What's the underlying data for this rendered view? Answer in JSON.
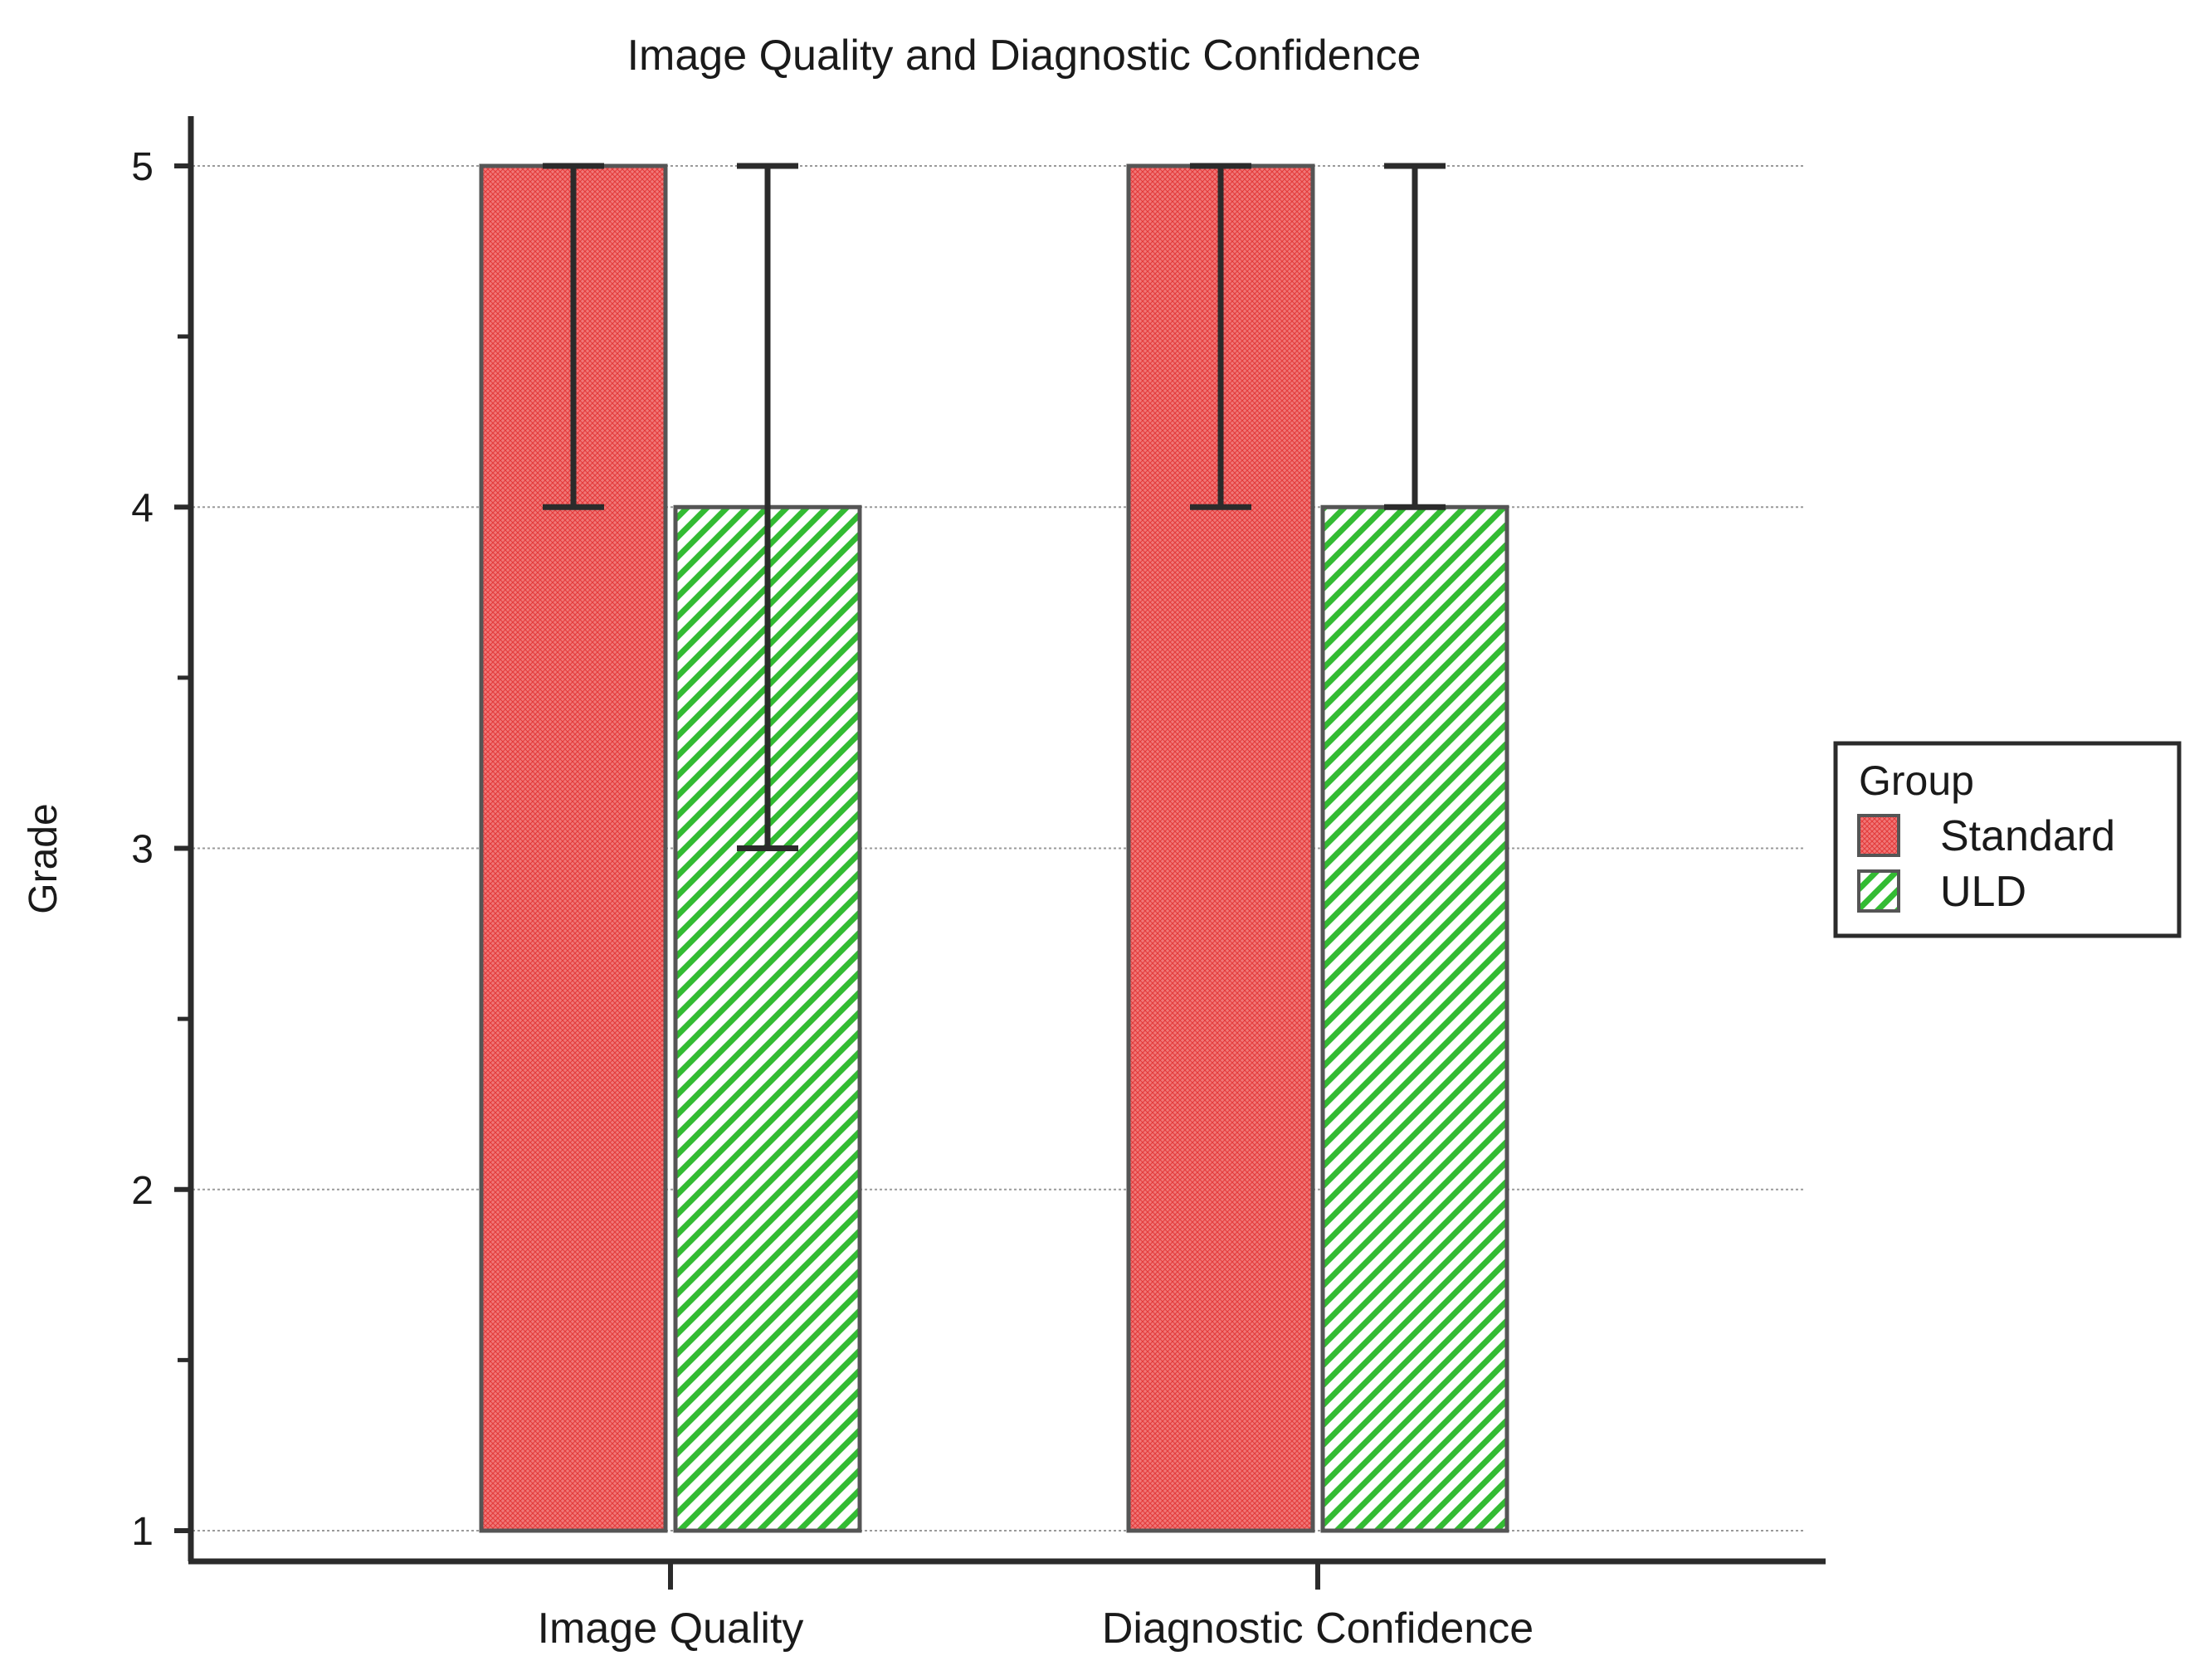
{
  "chart_data": {
    "type": "bar",
    "title": "Image Quality and Diagnostic Confidence",
    "xlabel": "",
    "ylabel": "Grade",
    "ylim": [
      1,
      5
    ],
    "yticks": [
      1,
      2,
      3,
      4,
      5
    ],
    "ytick_labels": [
      "1",
      "2",
      "3",
      "4",
      "5"
    ],
    "minor_yticks": [
      1.5,
      2.5,
      3.5,
      4.5
    ],
    "grid": true,
    "categories": [
      "Image Quality",
      "Diagnostic Confidence"
    ],
    "series": [
      {
        "name": "Standard",
        "values": [
          5,
          5
        ],
        "error_low": [
          4,
          4
        ],
        "error_high": [
          5,
          5
        ],
        "color": "#f26a6a",
        "pattern": "crosshatch"
      },
      {
        "name": "ULD",
        "values": [
          4,
          4
        ],
        "error_low": [
          3,
          4
        ],
        "error_high": [
          5,
          5
        ],
        "color": "#33bb33",
        "pattern": "diagonal-stripes"
      }
    ],
    "legend": {
      "title": "Group",
      "position": "right",
      "entries": [
        "Standard",
        "ULD"
      ]
    }
  }
}
